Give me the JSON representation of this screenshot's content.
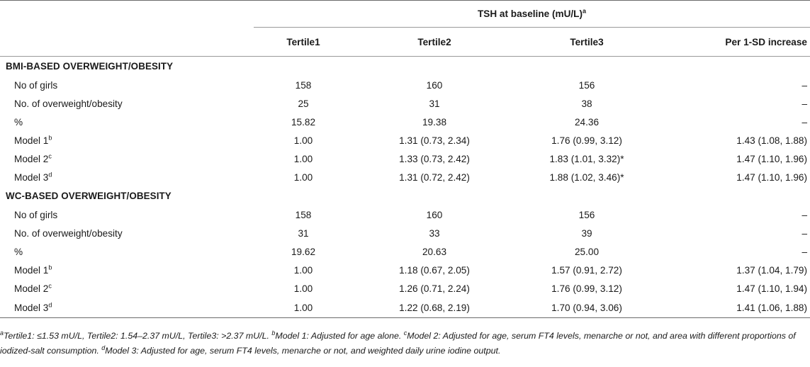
{
  "header": {
    "super_title": "TSH at baseline (mU/L)",
    "super_title_sup": "a",
    "columns": [
      "Tertile1",
      "Tertile2",
      "Tertile3",
      "Per 1-SD increase"
    ]
  },
  "sections": [
    {
      "title": "BMI-BASED OVERWEIGHT/OBESITY",
      "rows": [
        {
          "label": "No of girls",
          "sup": "",
          "t1": "158",
          "t2": "160",
          "t3": "156",
          "per_sd": "–"
        },
        {
          "label": "No. of overweight/obesity",
          "sup": "",
          "t1": "25",
          "t2": "31",
          "t3": "38",
          "per_sd": "–"
        },
        {
          "label": "%",
          "sup": "",
          "t1": "15.82",
          "t2": "19.38",
          "t3": "24.36",
          "per_sd": "–"
        },
        {
          "label": "Model 1",
          "sup": "b",
          "t1": "1.00",
          "t2": "1.31 (0.73, 2.34)",
          "t3": "1.76 (0.99, 3.12)",
          "per_sd": "1.43 (1.08, 1.88)"
        },
        {
          "label": "Model 2",
          "sup": "c",
          "t1": "1.00",
          "t2": "1.33 (0.73, 2.42)",
          "t3": "1.83 (1.01, 3.32)*",
          "per_sd": "1.47 (1.10, 1.96)"
        },
        {
          "label": "Model 3",
          "sup": "d",
          "t1": "1.00",
          "t2": "1.31 (0.72, 2.42)",
          "t3": "1.88 (1.02, 3.46)*",
          "per_sd": "1.47 (1.10, 1.96)"
        }
      ]
    },
    {
      "title": "WC-BASED OVERWEIGHT/OBESITY",
      "rows": [
        {
          "label": "No of girls",
          "sup": "",
          "t1": "158",
          "t2": "160",
          "t3": "156",
          "per_sd": "–"
        },
        {
          "label": "No. of overweight/obesity",
          "sup": "",
          "t1": "31",
          "t2": "33",
          "t3": "39",
          "per_sd": "–"
        },
        {
          "label": "%",
          "sup": "",
          "t1": "19.62",
          "t2": "20.63",
          "t3": "25.00",
          "per_sd": "–"
        },
        {
          "label": "Model 1",
          "sup": "b",
          "t1": "1.00",
          "t2": "1.18 (0.67, 2.05)",
          "t3": "1.57 (0.91, 2.72)",
          "per_sd": "1.37 (1.04, 1.79)"
        },
        {
          "label": "Model 2",
          "sup": "c",
          "t1": "1.00",
          "t2": "1.26 (0.71, 2.24)",
          "t3": "1.76 (0.99, 3.12)",
          "per_sd": "1.47 (1.10, 1.94)"
        },
        {
          "label": "Model 3",
          "sup": "d",
          "t1": "1.00",
          "t2": "1.22 (0.68, 2.19)",
          "t3": "1.70 (0.94, 3.06)",
          "per_sd": "1.41 (1.06, 1.88)"
        }
      ]
    }
  ],
  "footnotes": [
    {
      "sup": "a",
      "text": "Tertile1: ≤1.53 mU/L, Tertile2: 1.54–2.37 mU/L, Tertile3: >2.37 mU/L. "
    },
    {
      "sup": "b",
      "text": "Model 1: Adjusted for age alone. "
    },
    {
      "sup": "c",
      "text": "Model 2: Adjusted for age, serum FT4 levels, menarche or not, and area with different proportions of iodized-salt consumption. "
    },
    {
      "sup": "d",
      "text": "Model 3: Adjusted for age, serum FT4 levels, menarche or not, and weighted daily urine iodine output."
    }
  ]
}
